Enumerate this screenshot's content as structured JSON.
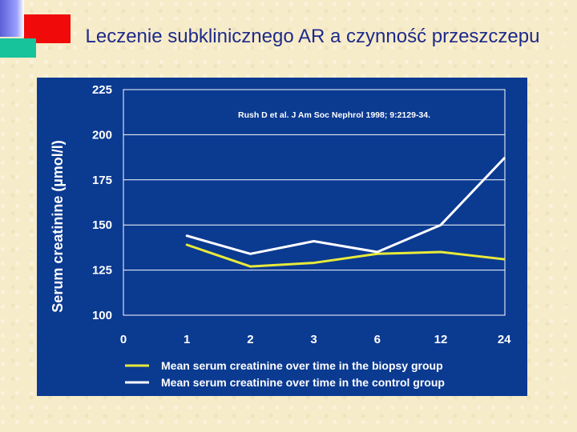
{
  "slide": {
    "title": "Leczenie subklinicznego AR a czynność przeszczepu"
  },
  "colors": {
    "panel": "#0b3a91",
    "biopsy_line": "#e8ea3a",
    "control_line": "#ffffff"
  },
  "chart_data": {
    "type": "line",
    "categories": [
      "0",
      "1",
      "2",
      "3",
      "6",
      "12",
      "24"
    ],
    "ylabel": "Serum creatinine  (µmol/l)",
    "xlabel": "",
    "ylim": [
      100,
      225
    ],
    "yticks": [
      100,
      125,
      150,
      175,
      200,
      225
    ],
    "grid": true,
    "annotation": "Rush D et al. J Am Soc Nephrol 1998; 9:2129-34.",
    "legend_position": "bottom",
    "series": [
      {
        "name": "Mean serum creatinine over time in the biopsy group",
        "color": "#e8ea3a",
        "values": [
          null,
          139,
          127,
          129,
          134,
          135,
          131
        ]
      },
      {
        "name": "Mean serum creatinine over time in the control group",
        "color": "#ffffff",
        "values": [
          null,
          144,
          134,
          141,
          135,
          150,
          187
        ]
      }
    ]
  }
}
